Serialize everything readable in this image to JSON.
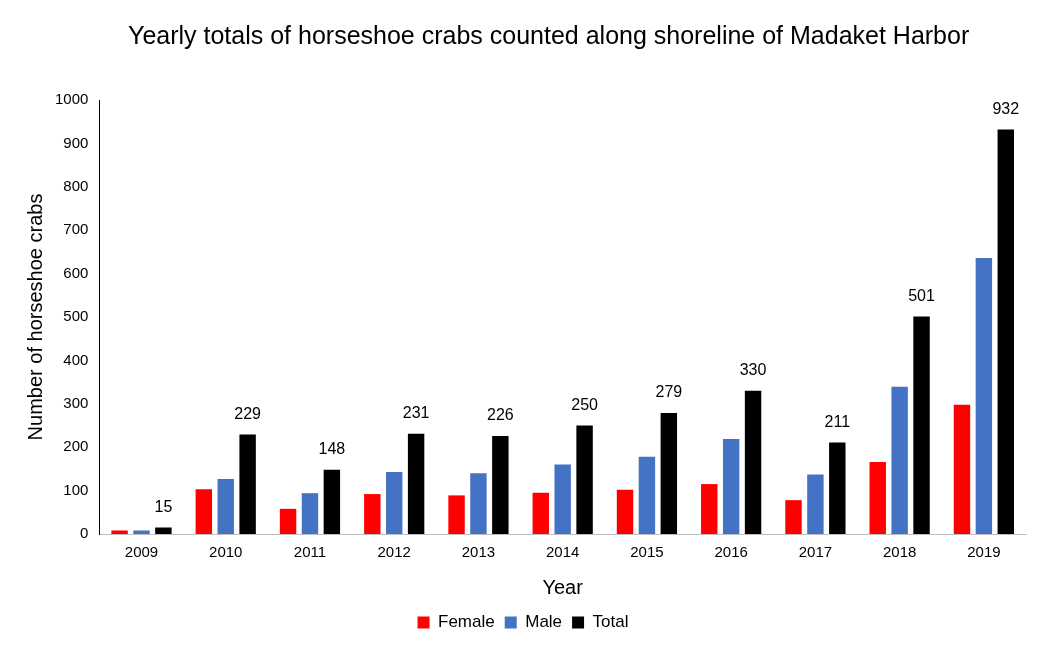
{
  "chart_data": {
    "type": "bar",
    "title": "Yearly totals of horseshoe crabs counted along shoreline of Madaket Harbor",
    "xlabel": "Year",
    "ylabel": "Number of horseshoe crabs",
    "categories": [
      "2009",
      "2010",
      "2011",
      "2012",
      "2013",
      "2014",
      "2015",
      "2016",
      "2017",
      "2018",
      "2019"
    ],
    "series": [
      {
        "name": "Female",
        "color": "#ff0000",
        "values": [
          8,
          103,
          58,
          92,
          89,
          95,
          102,
          115,
          78,
          166,
          298
        ]
      },
      {
        "name": "Male",
        "color": "#4472c4",
        "values": [
          8,
          127,
          94,
          143,
          140,
          160,
          178,
          219,
          137,
          339,
          636
        ]
      },
      {
        "name": "Total",
        "color": "#000000",
        "values": [
          15,
          229,
          148,
          231,
          226,
          250,
          279,
          330,
          211,
          501,
          932
        ],
        "value_labels": [
          "15",
          "229",
          "148",
          "231",
          "226",
          "250",
          "279",
          "330",
          "211",
          "501",
          "932"
        ]
      }
    ],
    "ylim": [
      0,
      1000
    ],
    "yticks": [
      0,
      100,
      200,
      300,
      400,
      500,
      600,
      700,
      800,
      900,
      1000
    ],
    "grid": false,
    "legend": "bottom"
  }
}
